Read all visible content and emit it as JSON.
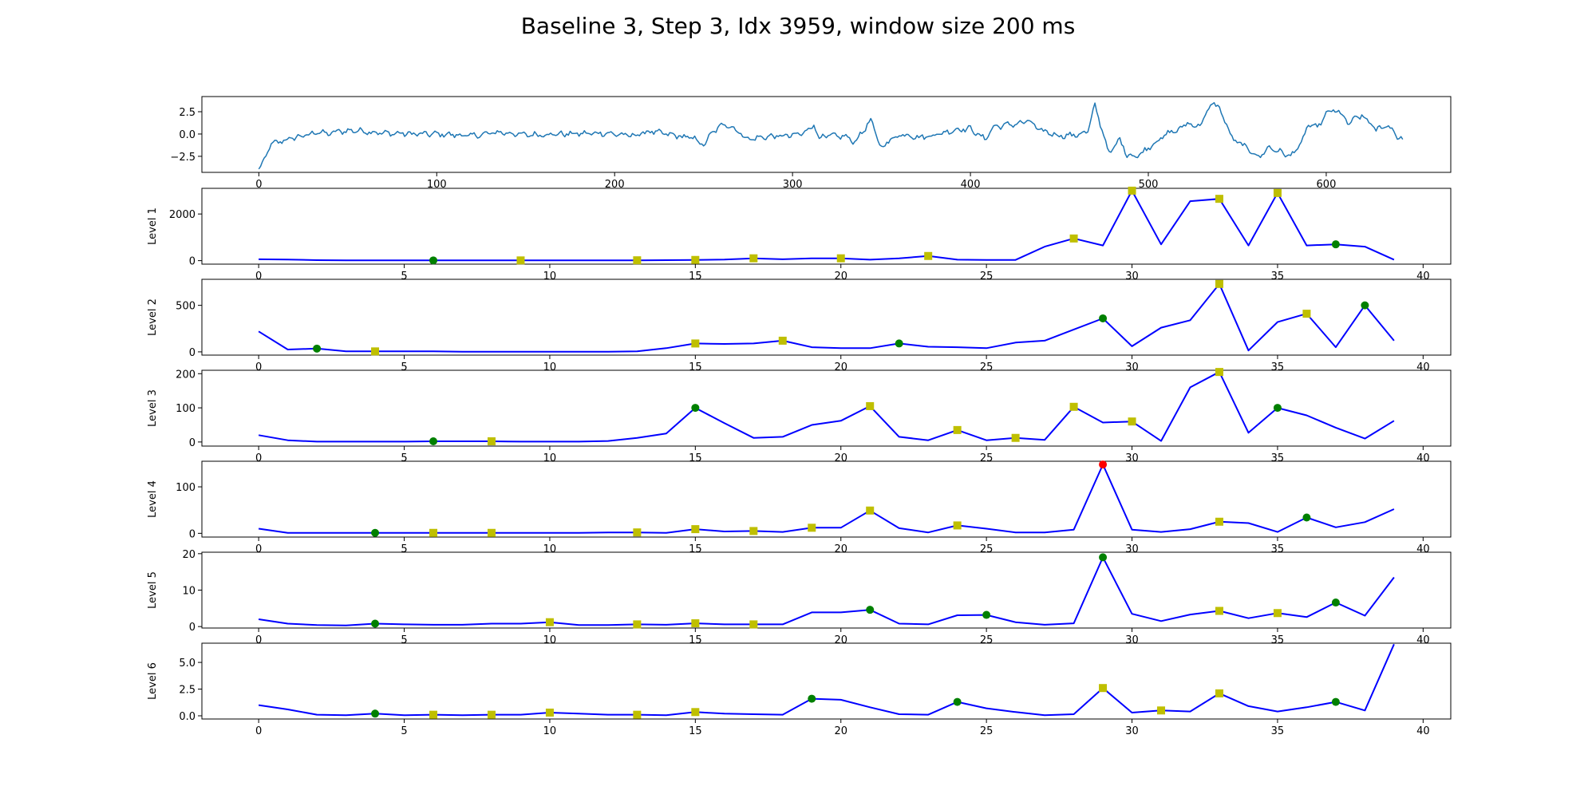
{
  "figure": {
    "title": "Baseline 3, Step 3, Idx 3959, window size 200 ms"
  },
  "colors": {
    "signal": "#1f77b4",
    "line": "#0000ff",
    "marker_green": "#008000",
    "marker_yellow": "#bfbf00",
    "marker_red": "#ff0000"
  },
  "chart_data": [
    {
      "type": "line",
      "title": "",
      "xlabel": "",
      "ylabel": "",
      "xlim": [
        -32,
        670
      ],
      "ylim": [
        -4.3,
        4.2
      ],
      "xticks": [
        0,
        100,
        200,
        300,
        400,
        500,
        600
      ],
      "yticks": [
        2.5,
        0.0,
        -2.5
      ],
      "ytick_labels": [
        "2.5",
        "0.0",
        "−2.5"
      ],
      "series": [
        {
          "color": "#1f77b4",
          "keypoints": [
            [
              0,
              -4.0
            ],
            [
              3,
              -3.0
            ],
            [
              6,
              -1.4
            ],
            [
              10,
              -0.9
            ],
            [
              15,
              -0.7
            ],
            [
              20,
              -0.4
            ],
            [
              25,
              -0.2
            ],
            [
              30,
              0.0
            ],
            [
              33,
              0.3
            ],
            [
              38,
              0.0
            ],
            [
              45,
              0.3
            ],
            [
              55,
              0.4
            ],
            [
              70,
              0.1
            ],
            [
              90,
              0.0
            ],
            [
              100,
              0.0
            ],
            [
              120,
              -0.2
            ],
            [
              135,
              0.2
            ],
            [
              150,
              -0.1
            ],
            [
              170,
              0.0
            ],
            [
              195,
              0.1
            ],
            [
              210,
              -0.2
            ],
            [
              220,
              0.3
            ],
            [
              235,
              -0.2
            ],
            [
              245,
              -0.5
            ],
            [
              250,
              -1.3
            ],
            [
              255,
              0.2
            ],
            [
              262,
              1.2
            ],
            [
              268,
              0.5
            ],
            [
              275,
              -0.6
            ],
            [
              285,
              -0.3
            ],
            [
              298,
              -0.2
            ],
            [
              305,
              0.0
            ],
            [
              312,
              1.0
            ],
            [
              315,
              -0.4
            ],
            [
              322,
              -0.2
            ],
            [
              330,
              -0.3
            ],
            [
              335,
              -0.9
            ],
            [
              344,
              1.5
            ],
            [
              350,
              -1.6
            ],
            [
              355,
              -0.6
            ],
            [
              362,
              0.0
            ],
            [
              372,
              -0.4
            ],
            [
              382,
              0.0
            ],
            [
              392,
              0.5
            ],
            [
              400,
              0.6
            ],
            [
              408,
              -0.6
            ],
            [
              413,
              0.8
            ],
            [
              420,
              1.0
            ],
            [
              428,
              1.2
            ],
            [
              433,
              1.5
            ],
            [
              438,
              0.5
            ],
            [
              450,
              -0.2
            ],
            [
              460,
              -0.1
            ],
            [
              466,
              0.3
            ],
            [
              470,
              3.2
            ],
            [
              474,
              0.5
            ],
            [
              478,
              -2.2
            ],
            [
              484,
              -0.6
            ],
            [
              488,
              -2.3
            ],
            [
              494,
              -2.5
            ],
            [
              500,
              -1.5
            ],
            [
              505,
              -0.8
            ],
            [
              512,
              0.2
            ],
            [
              518,
              0.5
            ],
            [
              522,
              1.4
            ],
            [
              526,
              0.7
            ],
            [
              532,
              1.8
            ],
            [
              536,
              3.7
            ],
            [
              541,
              2.5
            ],
            [
              547,
              -0.5
            ],
            [
              555,
              -1.5
            ],
            [
              562,
              -2.6
            ],
            [
              568,
              -1.5
            ],
            [
              574,
              -2.0
            ],
            [
              580,
              -2.5
            ],
            [
              586,
              -1.0
            ],
            [
              590,
              1.0
            ],
            [
              596,
              0.8
            ],
            [
              600,
              2.4
            ],
            [
              607,
              2.6
            ],
            [
              612,
              1.2
            ],
            [
              620,
              2.1
            ],
            [
              628,
              0.5
            ],
            [
              635,
              1.0
            ],
            [
              640,
              -0.3
            ],
            [
              643,
              -0.5
            ]
          ]
        }
      ]
    },
    {
      "type": "line",
      "title": "",
      "xlabel": "",
      "ylabel": "Level 1",
      "xlim": [
        -1.95,
        40.95
      ],
      "ylim": [
        -150,
        3100
      ],
      "xticks": [
        0,
        5,
        10,
        15,
        20,
        25,
        30,
        35,
        40
      ],
      "yticks": [
        0,
        2000
      ],
      "ytick_labels": [
        "0",
        "2000"
      ],
      "series": [
        {
          "color": "#0000ff",
          "values": [
            60,
            50,
            20,
            15,
            15,
            10,
            10,
            10,
            10,
            10,
            10,
            10,
            10,
            15,
            20,
            30,
            50,
            100,
            60,
            100,
            100,
            40,
            100,
            200,
            40,
            30,
            30,
            600,
            950,
            650,
            3000,
            700,
            2550,
            2650,
            650,
            2900,
            650,
            700,
            600,
            40
          ]
        }
      ],
      "markers": [
        {
          "x": 6,
          "color": "green"
        },
        {
          "x": 9,
          "color": "yellow"
        },
        {
          "x": 13,
          "color": "yellow"
        },
        {
          "x": 15,
          "color": "yellow"
        },
        {
          "x": 17,
          "color": "yellow"
        },
        {
          "x": 20,
          "color": "yellow"
        },
        {
          "x": 23,
          "color": "yellow"
        },
        {
          "x": 28,
          "color": "yellow"
        },
        {
          "x": 30,
          "color": "yellow"
        },
        {
          "x": 33,
          "color": "yellow"
        },
        {
          "x": 35,
          "color": "yellow"
        },
        {
          "x": 37,
          "color": "green"
        }
      ]
    },
    {
      "type": "line",
      "title": "",
      "xlabel": "",
      "ylabel": "Level 2",
      "xlim": [
        -1.95,
        40.95
      ],
      "ylim": [
        -35,
        780
      ],
      "xticks": [
        0,
        5,
        10,
        15,
        20,
        25,
        30,
        35,
        40
      ],
      "yticks": [
        0,
        500
      ],
      "ytick_labels": [
        "0",
        "500"
      ],
      "series": [
        {
          "color": "#0000ff",
          "values": [
            220,
            25,
            35,
            5,
            5,
            5,
            5,
            2,
            2,
            2,
            2,
            2,
            2,
            5,
            40,
            90,
            85,
            90,
            120,
            50,
            40,
            40,
            90,
            55,
            50,
            40,
            100,
            120,
            240,
            360,
            60,
            260,
            340,
            730,
            15,
            320,
            410,
            50,
            500,
            120
          ]
        }
      ],
      "markers": [
        {
          "x": 2,
          "color": "green"
        },
        {
          "x": 4,
          "color": "yellow"
        },
        {
          "x": 15,
          "color": "yellow"
        },
        {
          "x": 18,
          "color": "yellow"
        },
        {
          "x": 22,
          "color": "green"
        },
        {
          "x": 29,
          "color": "green"
        },
        {
          "x": 33,
          "color": "yellow"
        },
        {
          "x": 36,
          "color": "yellow"
        },
        {
          "x": 38,
          "color": "green"
        }
      ]
    },
    {
      "type": "line",
      "title": "",
      "xlabel": "",
      "ylabel": "Level 3",
      "xlim": [
        -1.95,
        40.95
      ],
      "ylim": [
        -12,
        210
      ],
      "xticks": [
        0,
        5,
        10,
        15,
        20,
        25,
        30,
        35,
        40
      ],
      "yticks": [
        0,
        100,
        200
      ],
      "ytick_labels": [
        "0",
        "100",
        "200"
      ],
      "series": [
        {
          "color": "#0000ff",
          "values": [
            20,
            5,
            1,
            1,
            1,
            1,
            2,
            2,
            2,
            1,
            1,
            1,
            3,
            12,
            25,
            100,
            55,
            12,
            15,
            50,
            62,
            105,
            15,
            5,
            35,
            5,
            12,
            6,
            103,
            57,
            60,
            3,
            160,
            205,
            27,
            100,
            78,
            42,
            10,
            62
          ]
        }
      ],
      "markers": [
        {
          "x": 6,
          "color": "green"
        },
        {
          "x": 8,
          "color": "yellow"
        },
        {
          "x": 15,
          "color": "green"
        },
        {
          "x": 21,
          "color": "yellow"
        },
        {
          "x": 24,
          "color": "yellow"
        },
        {
          "x": 26,
          "color": "yellow"
        },
        {
          "x": 28,
          "color": "yellow"
        },
        {
          "x": 30,
          "color": "yellow"
        },
        {
          "x": 33,
          "color": "yellow"
        },
        {
          "x": 35,
          "color": "green"
        }
      ]
    },
    {
      "type": "line",
      "title": "",
      "xlabel": "",
      "ylabel": "Level 4",
      "xlim": [
        -1.95,
        40.95
      ],
      "ylim": [
        -8,
        155
      ],
      "xticks": [
        0,
        5,
        10,
        15,
        20,
        25,
        30,
        35,
        40
      ],
      "yticks": [
        0,
        100
      ],
      "ytick_labels": [
        "0",
        "100"
      ],
      "series": [
        {
          "color": "#0000ff",
          "values": [
            10,
            1,
            1,
            1,
            1,
            1,
            1,
            1,
            1,
            1,
            1,
            1,
            2,
            2,
            1,
            9,
            4,
            5,
            3,
            12,
            12,
            49,
            11,
            2,
            17,
            10,
            2,
            2,
            8,
            148,
            8,
            3,
            9,
            25,
            22,
            3,
            34,
            13,
            24,
            52
          ]
        }
      ],
      "markers": [
        {
          "x": 4,
          "color": "green"
        },
        {
          "x": 6,
          "color": "yellow"
        },
        {
          "x": 8,
          "color": "yellow"
        },
        {
          "x": 13,
          "color": "yellow"
        },
        {
          "x": 15,
          "color": "yellow"
        },
        {
          "x": 17,
          "color": "yellow"
        },
        {
          "x": 19,
          "color": "yellow"
        },
        {
          "x": 21,
          "color": "yellow"
        },
        {
          "x": 24,
          "color": "yellow"
        },
        {
          "x": 29,
          "color": "red"
        },
        {
          "x": 33,
          "color": "yellow"
        },
        {
          "x": 36,
          "color": "green"
        }
      ]
    },
    {
      "type": "line",
      "title": "",
      "xlabel": "",
      "ylabel": "Level 5",
      "xlim": [
        -1.95,
        40.95
      ],
      "ylim": [
        -0.4,
        20.4
      ],
      "xticks": [
        0,
        5,
        10,
        15,
        20,
        25,
        30,
        35,
        40
      ],
      "yticks": [
        0,
        10,
        20
      ],
      "ytick_labels": [
        "0",
        "10",
        "20"
      ],
      "series": [
        {
          "color": "#0000ff",
          "values": [
            2,
            0.8,
            0.4,
            0.3,
            0.8,
            0.6,
            0.5,
            0.5,
            0.8,
            0.8,
            1.2,
            0.4,
            0.4,
            0.6,
            0.5,
            0.9,
            0.6,
            0.6,
            0.6,
            3.9,
            3.9,
            4.6,
            0.8,
            0.6,
            3.1,
            3.2,
            1.2,
            0.5,
            0.9,
            19,
            3.5,
            1.5,
            3.3,
            4.3,
            2.3,
            3.7,
            2.6,
            6.6,
            3,
            13.5
          ]
        }
      ],
      "markers": [
        {
          "x": 4,
          "color": "green"
        },
        {
          "x": 10,
          "color": "yellow"
        },
        {
          "x": 13,
          "color": "yellow"
        },
        {
          "x": 15,
          "color": "yellow"
        },
        {
          "x": 17,
          "color": "yellow"
        },
        {
          "x": 21,
          "color": "green"
        },
        {
          "x": 25,
          "color": "green"
        },
        {
          "x": 29,
          "color": "green"
        },
        {
          "x": 33,
          "color": "yellow"
        },
        {
          "x": 35,
          "color": "yellow"
        },
        {
          "x": 37,
          "color": "green"
        }
      ]
    },
    {
      "type": "line",
      "title": "",
      "xlabel": "",
      "ylabel": "Level 6",
      "xlim": [
        -1.95,
        40.95
      ],
      "ylim": [
        -0.3,
        6.8
      ],
      "xticks": [
        0,
        5,
        10,
        15,
        20,
        25,
        30,
        35,
        40
      ],
      "yticks": [
        0,
        2.5,
        5.0
      ],
      "ytick_labels": [
        "0.0",
        "2.5",
        "5.0"
      ],
      "series": [
        {
          "color": "#0000ff",
          "values": [
            1,
            0.6,
            0.1,
            0.05,
            0.2,
            0.05,
            0.1,
            0.05,
            0.1,
            0.1,
            0.3,
            0.2,
            0.1,
            0.1,
            0.05,
            0.35,
            0.2,
            0.15,
            0.1,
            1.6,
            1.5,
            0.8,
            0.15,
            0.1,
            1.3,
            0.7,
            0.35,
            0.05,
            0.15,
            2.6,
            0.3,
            0.5,
            0.4,
            2.1,
            0.9,
            0.4,
            0.8,
            1.3,
            0.5,
            6.7
          ]
        }
      ],
      "markers": [
        {
          "x": 4,
          "color": "green"
        },
        {
          "x": 6,
          "color": "yellow"
        },
        {
          "x": 8,
          "color": "yellow"
        },
        {
          "x": 10,
          "color": "yellow"
        },
        {
          "x": 13,
          "color": "yellow"
        },
        {
          "x": 15,
          "color": "yellow"
        },
        {
          "x": 19,
          "color": "green"
        },
        {
          "x": 24,
          "color": "green"
        },
        {
          "x": 29,
          "color": "yellow"
        },
        {
          "x": 31,
          "color": "yellow"
        },
        {
          "x": 33,
          "color": "yellow"
        },
        {
          "x": 37,
          "color": "green"
        }
      ]
    }
  ]
}
